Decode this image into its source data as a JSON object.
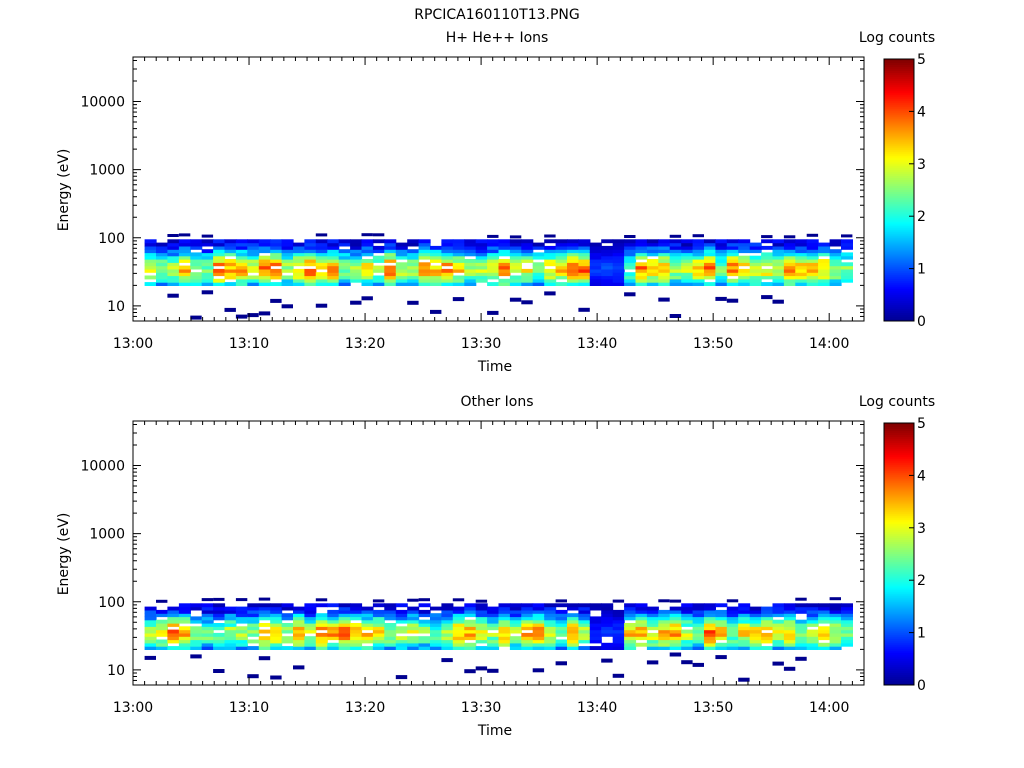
{
  "figure_title": "RPCICA160110T13.PNG",
  "chart_data": [
    {
      "type": "heatmap",
      "title": "H+ He++ Ions",
      "xlabel": "Time",
      "ylabel": "Energy (eV)",
      "x_ticks": [
        "13:00",
        "13:10",
        "13:20",
        "13:30",
        "13:40",
        "13:50",
        "14:00"
      ],
      "x_range": [
        "13:00",
        "14:03"
      ],
      "y_scale": "log",
      "y_ticks": [
        "10",
        "100",
        "1000",
        "10000"
      ],
      "y_range": [
        6,
        45000
      ],
      "colorbar": {
        "label": "Log counts",
        "range": [
          0,
          5
        ],
        "ticks": [
          "0",
          "1",
          "2",
          "3",
          "4",
          "5"
        ]
      },
      "colormap": [
        "#00008f",
        "#0000ff",
        "#0080ff",
        "#00ffff",
        "#80ff80",
        "#ffff00",
        "#ff8000",
        "#ff0000",
        "#800000"
      ],
      "band": {
        "energy_range_eV": [
          20,
          95
        ],
        "peak_energy_eV": 35,
        "peak_log_counts": 3.2,
        "sparse_low_energy_bins_eV": [
          6,
          16
        ],
        "data_gap": [
          "13:39",
          "13:42"
        ]
      },
      "seed": 7
    },
    {
      "type": "heatmap",
      "title": "Other Ions",
      "xlabel": "Time",
      "ylabel": "Energy (eV)",
      "x_ticks": [
        "13:00",
        "13:10",
        "13:20",
        "13:30",
        "13:40",
        "13:50",
        "14:00"
      ],
      "x_range": [
        "13:00",
        "14:03"
      ],
      "y_scale": "log",
      "y_ticks": [
        "10",
        "100",
        "1000",
        "10000"
      ],
      "y_range": [
        6,
        45000
      ],
      "colorbar": {
        "label": "Log counts",
        "range": [
          0,
          5
        ],
        "ticks": [
          "0",
          "1",
          "2",
          "3",
          "4",
          "5"
        ]
      },
      "colormap": [
        "#00008f",
        "#0000ff",
        "#0080ff",
        "#00ffff",
        "#80ff80",
        "#ffff00",
        "#ff8000",
        "#ff0000",
        "#800000"
      ],
      "band": {
        "energy_range_eV": [
          20,
          95
        ],
        "peak_energy_eV": 35,
        "peak_log_counts": 3.1,
        "sparse_low_energy_bins_eV": [
          7,
          17
        ],
        "data_gap": [
          "13:39",
          "13:42"
        ]
      },
      "seed": 23
    }
  ]
}
